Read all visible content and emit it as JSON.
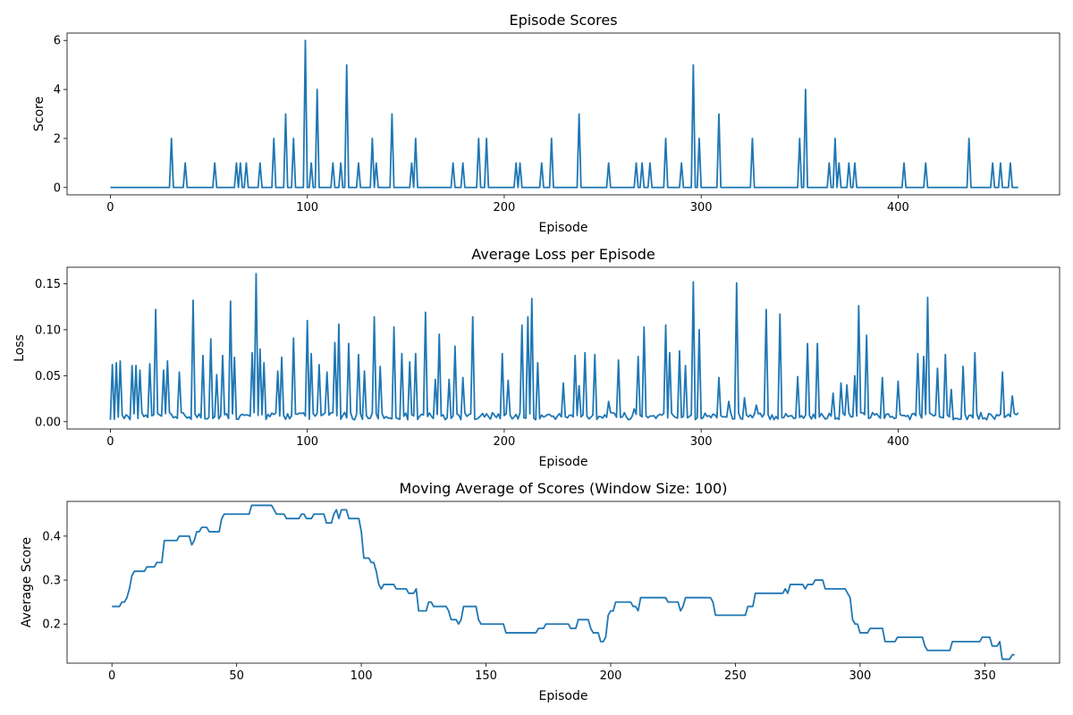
{
  "chart_data": [
    {
      "type": "line",
      "title": "Episode Scores",
      "xlabel": "Episode",
      "ylabel": "Score",
      "xlim": [
        -22,
        482
      ],
      "ylim": [
        -0.3,
        6.3
      ],
      "xticks": [
        0,
        100,
        200,
        300,
        400
      ],
      "yticks": [
        0,
        2,
        4,
        6
      ],
      "color": "#1f77b4",
      "n_points": 462,
      "spikes": [
        [
          31,
          2
        ],
        [
          38,
          1
        ],
        [
          53,
          1
        ],
        [
          64,
          1
        ],
        [
          66,
          1
        ],
        [
          69,
          1
        ],
        [
          76,
          1
        ],
        [
          83,
          2
        ],
        [
          89,
          3
        ],
        [
          93,
          2
        ],
        [
          99,
          6
        ],
        [
          102,
          1
        ],
        [
          105,
          4
        ],
        [
          113,
          1
        ],
        [
          117,
          1
        ],
        [
          120,
          5
        ],
        [
          126,
          1
        ],
        [
          133,
          2
        ],
        [
          135,
          1
        ],
        [
          143,
          3
        ],
        [
          153,
          1
        ],
        [
          155,
          2
        ],
        [
          174,
          1
        ],
        [
          179,
          1
        ],
        [
          187,
          2
        ],
        [
          191,
          2
        ],
        [
          206,
          1
        ],
        [
          208,
          1
        ],
        [
          219,
          1
        ],
        [
          224,
          2
        ],
        [
          238,
          3
        ],
        [
          253,
          1
        ],
        [
          267,
          1
        ],
        [
          270,
          1
        ],
        [
          274,
          1
        ],
        [
          282,
          2
        ],
        [
          290,
          1
        ],
        [
          296,
          5
        ],
        [
          299,
          2
        ],
        [
          309,
          3
        ],
        [
          326,
          2
        ],
        [
          350,
          2
        ],
        [
          353,
          4
        ],
        [
          365,
          1
        ],
        [
          368,
          2
        ],
        [
          370,
          1
        ],
        [
          375,
          1
        ],
        [
          378,
          1
        ],
        [
          403,
          1
        ],
        [
          414,
          1
        ],
        [
          436,
          2
        ],
        [
          448,
          1
        ],
        [
          452,
          1
        ],
        [
          457,
          1
        ]
      ]
    },
    {
      "type": "line",
      "title": "Average Loss per Episode",
      "xlabel": "Episode",
      "ylabel": "Loss",
      "xlim": [
        -22,
        482
      ],
      "ylim": [
        -0.008,
        0.168
      ],
      "xticks": [
        0,
        100,
        200,
        300,
        400
      ],
      "yticks": [
        0.0,
        0.05,
        0.1,
        0.15
      ],
      "ytick_labels": [
        "0.00",
        "0.05",
        "0.10",
        "0.15"
      ],
      "color": "#1f77b4",
      "n_points": 462,
      "baseline": 0.006,
      "spikes": [
        [
          1,
          0.062
        ],
        [
          3,
          0.064
        ],
        [
          5,
          0.066
        ],
        [
          11,
          0.061
        ],
        [
          13,
          0.061
        ],
        [
          15,
          0.056
        ],
        [
          20,
          0.063
        ],
        [
          23,
          0.122
        ],
        [
          27,
          0.056
        ],
        [
          29,
          0.066
        ],
        [
          35,
          0.054
        ],
        [
          42,
          0.132
        ],
        [
          47,
          0.072
        ],
        [
          51,
          0.09
        ],
        [
          54,
          0.051
        ],
        [
          57,
          0.072
        ],
        [
          61,
          0.131
        ],
        [
          63,
          0.07
        ],
        [
          72,
          0.075
        ],
        [
          74,
          0.161
        ],
        [
          76,
          0.079
        ],
        [
          78,
          0.064
        ],
        [
          85,
          0.055
        ],
        [
          87,
          0.07
        ],
        [
          93,
          0.091
        ],
        [
          100,
          0.11
        ],
        [
          102,
          0.074
        ],
        [
          106,
          0.062
        ],
        [
          110,
          0.054
        ],
        [
          114,
          0.086
        ],
        [
          116,
          0.106
        ],
        [
          121,
          0.085
        ],
        [
          126,
          0.073
        ],
        [
          129,
          0.055
        ],
        [
          134,
          0.114
        ],
        [
          137,
          0.06
        ],
        [
          144,
          0.103
        ],
        [
          148,
          0.074
        ],
        [
          152,
          0.065
        ],
        [
          155,
          0.074
        ],
        [
          160,
          0.119
        ],
        [
          165,
          0.046
        ],
        [
          167,
          0.095
        ],
        [
          172,
          0.046
        ],
        [
          175,
          0.082
        ],
        [
          179,
          0.048
        ],
        [
          184,
          0.114
        ],
        [
          199,
          0.074
        ],
        [
          202,
          0.045
        ],
        [
          209,
          0.105
        ],
        [
          212,
          0.114
        ],
        [
          214,
          0.134
        ],
        [
          217,
          0.064
        ],
        [
          230,
          0.042
        ],
        [
          236,
          0.072
        ],
        [
          238,
          0.039
        ],
        [
          241,
          0.075
        ],
        [
          246,
          0.073
        ],
        [
          253,
          0.022
        ],
        [
          258,
          0.067
        ],
        [
          266,
          0.014
        ],
        [
          268,
          0.071
        ],
        [
          271,
          0.103
        ],
        [
          282,
          0.105
        ],
        [
          284,
          0.075
        ],
        [
          289,
          0.077
        ],
        [
          292,
          0.061
        ],
        [
          296,
          0.152
        ],
        [
          299,
          0.1
        ],
        [
          309,
          0.048
        ],
        [
          314,
          0.022
        ],
        [
          318,
          0.151
        ],
        [
          322,
          0.026
        ],
        [
          328,
          0.018
        ],
        [
          333,
          0.122
        ],
        [
          340,
          0.117
        ],
        [
          349,
          0.049
        ],
        [
          354,
          0.085
        ],
        [
          359,
          0.085
        ],
        [
          367,
          0.031
        ],
        [
          371,
          0.042
        ],
        [
          374,
          0.04
        ],
        [
          378,
          0.05
        ],
        [
          380,
          0.126
        ],
        [
          384,
          0.094
        ],
        [
          392,
          0.048
        ],
        [
          400,
          0.044
        ],
        [
          410,
          0.074
        ],
        [
          413,
          0.071
        ],
        [
          415,
          0.135
        ],
        [
          420,
          0.058
        ],
        [
          424,
          0.073
        ],
        [
          427,
          0.035
        ],
        [
          433,
          0.06
        ],
        [
          439,
          0.075
        ],
        [
          453,
          0.054
        ],
        [
          458,
          0.028
        ]
      ]
    },
    {
      "type": "line",
      "title": "Moving Average of Scores (Window Size: 100)",
      "xlabel": "Episode",
      "ylabel": "Average Score",
      "xlim": [
        -18,
        380
      ],
      "ylim": [
        0.111,
        0.479
      ],
      "xticks": [
        0,
        50,
        100,
        150,
        200,
        250,
        300,
        350
      ],
      "yticks": [
        0.2,
        0.3,
        0.4
      ],
      "color": "#1f77b4",
      "n_points": 363,
      "points": [
        [
          0,
          0.24
        ],
        [
          2,
          0.24
        ],
        [
          4,
          0.25
        ],
        [
          5,
          0.25
        ],
        [
          6,
          0.26
        ],
        [
          7,
          0.28
        ],
        [
          8,
          0.31
        ],
        [
          9,
          0.32
        ],
        [
          13,
          0.32
        ],
        [
          14,
          0.33
        ],
        [
          17,
          0.33
        ],
        [
          18,
          0.34
        ],
        [
          20,
          0.34
        ],
        [
          21,
          0.39
        ],
        [
          26,
          0.39
        ],
        [
          27,
          0.4
        ],
        [
          31,
          0.4
        ],
        [
          32,
          0.38
        ],
        [
          33,
          0.39
        ],
        [
          34,
          0.41
        ],
        [
          36,
          0.42
        ],
        [
          38,
          0.42
        ],
        [
          39,
          0.41
        ],
        [
          43,
          0.41
        ],
        [
          44,
          0.44
        ],
        [
          45,
          0.45
        ],
        [
          55,
          0.45
        ],
        [
          56,
          0.47
        ],
        [
          64,
          0.47
        ],
        [
          65,
          0.46
        ],
        [
          66,
          0.45
        ],
        [
          69,
          0.45
        ],
        [
          70,
          0.44
        ],
        [
          75,
          0.44
        ],
        [
          76,
          0.45
        ],
        [
          77,
          0.45
        ],
        [
          78,
          0.44
        ],
        [
          80,
          0.44
        ],
        [
          81,
          0.45
        ],
        [
          85,
          0.45
        ],
        [
          86,
          0.43
        ],
        [
          88,
          0.43
        ],
        [
          89,
          0.45
        ],
        [
          90,
          0.46
        ],
        [
          91,
          0.44
        ],
        [
          92,
          0.46
        ],
        [
          94,
          0.46
        ],
        [
          95,
          0.44
        ],
        [
          99,
          0.44
        ],
        [
          100,
          0.41
        ],
        [
          101,
          0.35
        ],
        [
          103,
          0.35
        ],
        [
          104,
          0.34
        ],
        [
          105,
          0.34
        ],
        [
          106,
          0.32
        ],
        [
          107,
          0.29
        ],
        [
          108,
          0.28
        ],
        [
          109,
          0.29
        ],
        [
          113,
          0.29
        ],
        [
          114,
          0.28
        ],
        [
          118,
          0.28
        ],
        [
          119,
          0.27
        ],
        [
          121,
          0.27
        ],
        [
          122,
          0.28
        ],
        [
          123,
          0.23
        ],
        [
          126,
          0.23
        ],
        [
          127,
          0.25
        ],
        [
          128,
          0.25
        ],
        [
          129,
          0.24
        ],
        [
          134,
          0.24
        ],
        [
          135,
          0.23
        ],
        [
          136,
          0.21
        ],
        [
          138,
          0.21
        ],
        [
          139,
          0.2
        ],
        [
          140,
          0.21
        ],
        [
          141,
          0.24
        ],
        [
          146,
          0.24
        ],
        [
          147,
          0.21
        ],
        [
          148,
          0.2
        ],
        [
          157,
          0.2
        ],
        [
          158,
          0.18
        ],
        [
          170,
          0.18
        ],
        [
          171,
          0.19
        ],
        [
          173,
          0.19
        ],
        [
          174,
          0.2
        ],
        [
          183,
          0.2
        ],
        [
          184,
          0.19
        ],
        [
          186,
          0.19
        ],
        [
          187,
          0.21
        ],
        [
          191,
          0.21
        ],
        [
          192,
          0.19
        ],
        [
          193,
          0.18
        ],
        [
          195,
          0.18
        ],
        [
          196,
          0.16
        ],
        [
          197,
          0.16
        ],
        [
          198,
          0.17
        ],
        [
          199,
          0.22
        ],
        [
          200,
          0.23
        ],
        [
          201,
          0.23
        ],
        [
          202,
          0.25
        ],
        [
          208,
          0.25
        ],
        [
          209,
          0.24
        ],
        [
          210,
          0.24
        ],
        [
          211,
          0.23
        ],
        [
          212,
          0.26
        ],
        [
          222,
          0.26
        ],
        [
          223,
          0.25
        ],
        [
          227,
          0.25
        ],
        [
          228,
          0.23
        ],
        [
          229,
          0.24
        ],
        [
          230,
          0.26
        ],
        [
          240,
          0.26
        ],
        [
          241,
          0.25
        ],
        [
          242,
          0.22
        ],
        [
          254,
          0.22
        ],
        [
          255,
          0.24
        ],
        [
          257,
          0.24
        ],
        [
          258,
          0.27
        ],
        [
          269,
          0.27
        ],
        [
          270,
          0.28
        ],
        [
          271,
          0.27
        ],
        [
          272,
          0.29
        ],
        [
          277,
          0.29
        ],
        [
          278,
          0.28
        ],
        [
          279,
          0.29
        ],
        [
          281,
          0.29
        ],
        [
          282,
          0.3
        ],
        [
          285,
          0.3
        ],
        [
          286,
          0.28
        ],
        [
          294,
          0.28
        ],
        [
          295,
          0.27
        ],
        [
          296,
          0.26
        ],
        [
          297,
          0.21
        ],
        [
          298,
          0.2
        ],
        [
          299,
          0.2
        ],
        [
          300,
          0.18
        ],
        [
          303,
          0.18
        ],
        [
          304,
          0.19
        ],
        [
          309,
          0.19
        ],
        [
          310,
          0.16
        ],
        [
          314,
          0.16
        ],
        [
          315,
          0.17
        ],
        [
          325,
          0.17
        ],
        [
          326,
          0.15
        ],
        [
          327,
          0.14
        ],
        [
          336,
          0.14
        ],
        [
          337,
          0.16
        ],
        [
          348,
          0.16
        ],
        [
          349,
          0.17
        ],
        [
          352,
          0.17
        ],
        [
          353,
          0.15
        ],
        [
          355,
          0.15
        ],
        [
          356,
          0.16
        ],
        [
          357,
          0.12
        ],
        [
          360,
          0.12
        ],
        [
          361,
          0.13
        ],
        [
          363,
          0.13
        ]
      ]
    }
  ]
}
